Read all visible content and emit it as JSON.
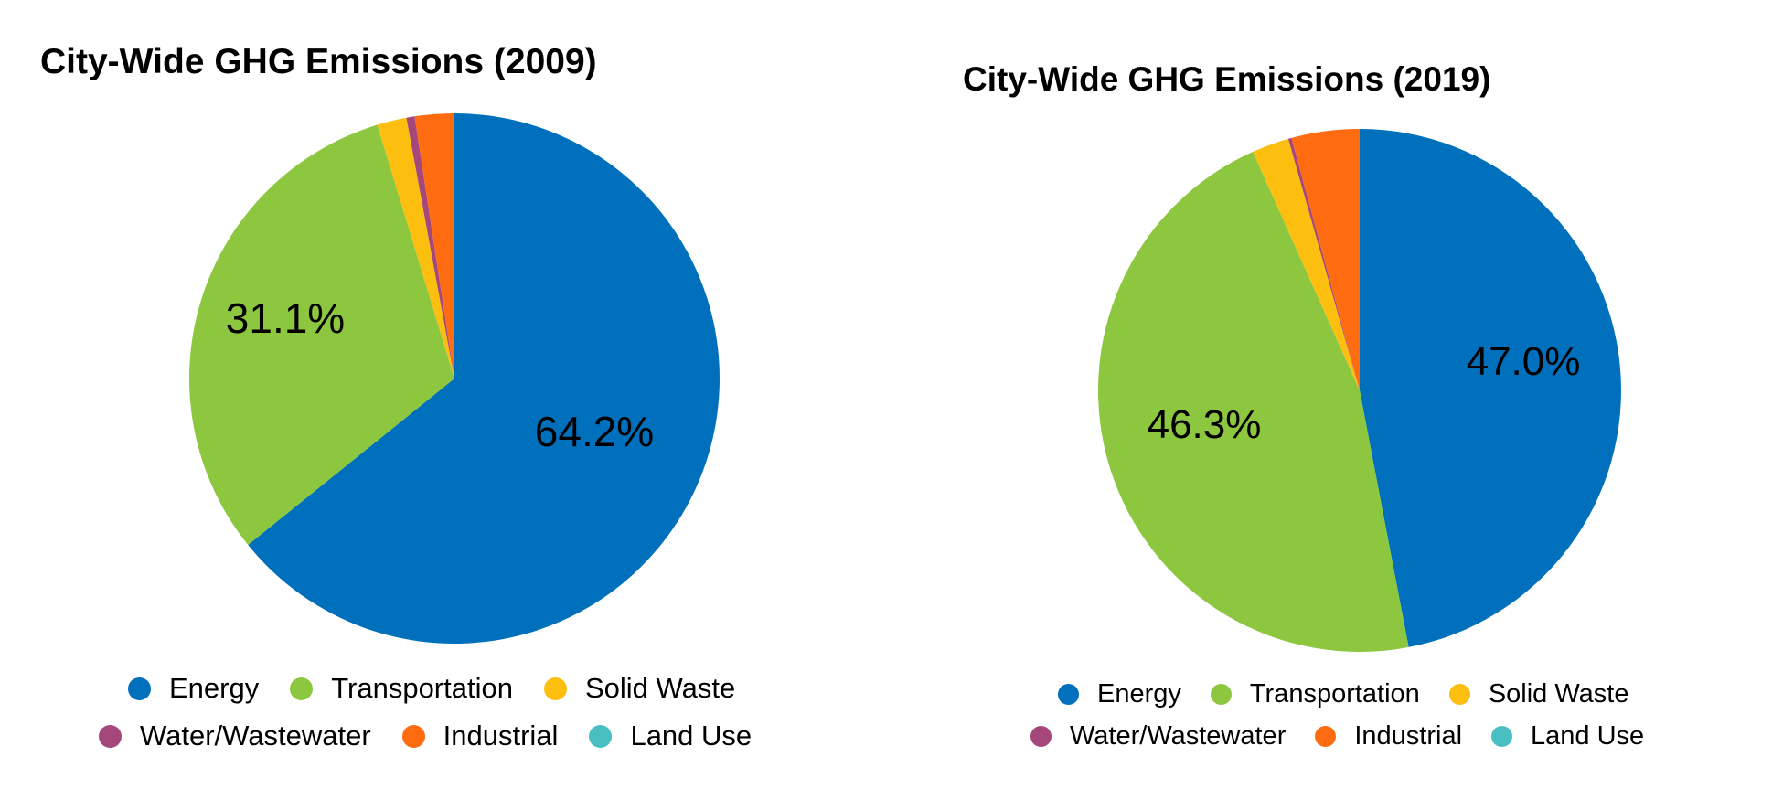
{
  "chart_data": [
    {
      "type": "pie",
      "title": "City-Wide GHG Emissions (2009)",
      "categories": [
        "Energy",
        "Transportation",
        "Solid Waste",
        "Water/Wastewater",
        "Industrial",
        "Land Use"
      ],
      "values": [
        64.2,
        31.1,
        1.8,
        0.5,
        2.4,
        0.0
      ],
      "data_labels": [
        "64.2%",
        "31.1%",
        "",
        "",
        "",
        ""
      ],
      "colors": [
        "#0070BC",
        "#8DC63F",
        "#FCBF10",
        "#A5477A",
        "#FF6B10",
        "#49BFC1"
      ],
      "legend_position": "bottom"
    },
    {
      "type": "pie",
      "title": "City-Wide GHG Emissions (2019)",
      "categories": [
        "Energy",
        "Transportation",
        "Solid Waste",
        "Water/Wastewater",
        "Industrial",
        "Land Use"
      ],
      "values": [
        47.0,
        46.3,
        2.3,
        0.2,
        4.2,
        0.0
      ],
      "data_labels": [
        "47.0%",
        "46.3%",
        "",
        "",
        "",
        ""
      ],
      "colors": [
        "#0070BC",
        "#8DC63F",
        "#FCBF10",
        "#A5477A",
        "#FF6B10",
        "#49BFC1"
      ],
      "legend_position": "bottom"
    }
  ]
}
